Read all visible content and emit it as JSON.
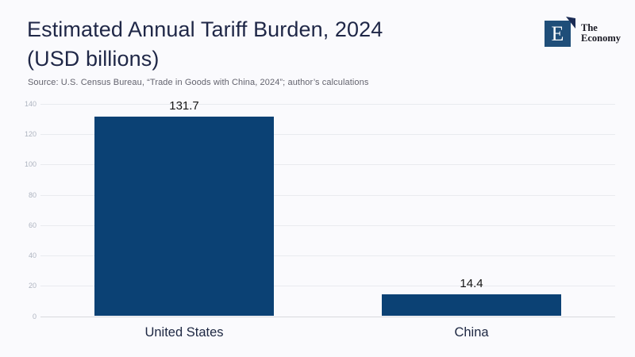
{
  "page": {
    "background": "#fafafd"
  },
  "header": {
    "title_line1": "Estimated Annual Tariff Burden, 2024",
    "title_line2": "(USD billions)",
    "source": "Source: U.S. Census Bureau, “Trade in Goods with China, 2024”; author’s calculations"
  },
  "logo": {
    "letter": "E",
    "name_line1": "The",
    "name_line2": "Economy",
    "square_color": "#1f4e79",
    "mark_color": "#1b2c55"
  },
  "chart_data": {
    "type": "bar",
    "categories": [
      "United States",
      "China"
    ],
    "values": [
      131.7,
      14.4
    ],
    "value_labels": [
      "131.7",
      "14.4"
    ],
    "title": "Estimated Annual Tariff Burden, 2024 (USD billions)",
    "xlabel": "",
    "ylabel": "",
    "ylim": [
      0,
      140
    ],
    "yticks": [
      0,
      20,
      40,
      60,
      80,
      100,
      120,
      140
    ],
    "grid": true,
    "legend_position": "none",
    "bar_color": "#0b4174"
  }
}
